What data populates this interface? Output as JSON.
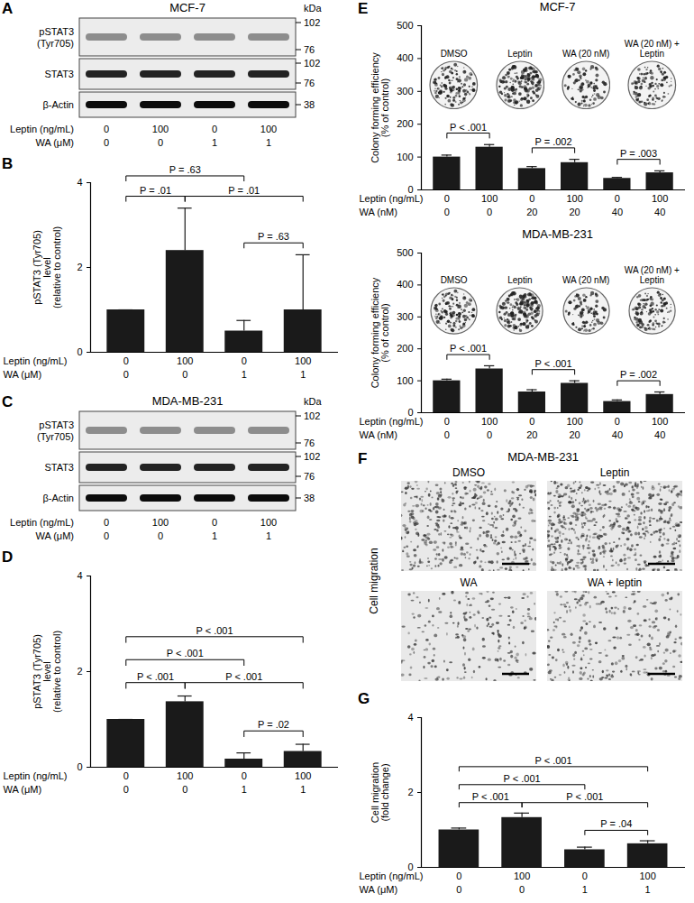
{
  "chart_data": [
    {
      "panel": "B",
      "type": "bar",
      "y_label": "pSTAT3 (Tyr705)\nlevel\n(relative to control)",
      "values": [
        1,
        2.4,
        0.5,
        1.0
      ],
      "errors": [
        0,
        1.0,
        0.25,
        1.3
      ],
      "color": "#1a1a1a",
      "ylim": [
        0,
        4
      ],
      "yticks": [
        0,
        2,
        4
      ],
      "conditions": [
        {
          "label": "Leptin (ng/mL)",
          "values": [
            0,
            100,
            0,
            100
          ]
        },
        {
          "label": "WA (μM)",
          "values": [
            0,
            0,
            1,
            1
          ]
        }
      ],
      "comparisons": [
        {
          "pair": [
            0,
            2
          ],
          "label": "P = .63"
        },
        {
          "pair": [
            0,
            1
          ],
          "label": "P = .01"
        },
        {
          "pair": [
            1,
            3
          ],
          "label": "P = .01"
        },
        {
          "pair": [
            2,
            3
          ],
          "label": "P = .63"
        }
      ]
    },
    {
      "panel": "D",
      "type": "bar",
      "y_label": "pSTAT3 (Tyr705)\nlevel\n(relative to control)",
      "values": [
        1,
        1.37,
        0.17,
        0.33
      ],
      "errors": [
        0,
        0.12,
        0.13,
        0.15
      ],
      "color": "#1a1a1a",
      "ylim": [
        0,
        4
      ],
      "yticks": [
        0,
        2,
        4
      ],
      "conditions": [
        {
          "label": "Leptin (ng/mL)",
          "values": [
            0,
            100,
            0,
            100
          ]
        },
        {
          "label": "WA (μM)",
          "values": [
            0,
            0,
            1,
            1
          ]
        }
      ],
      "comparisons": [
        {
          "pair": [
            0,
            3
          ],
          "label": "P < .001"
        },
        {
          "pair": [
            0,
            2
          ],
          "label": "P < .001"
        },
        {
          "pair": [
            0,
            1
          ],
          "label": "P < .001"
        },
        {
          "pair": [
            1,
            3
          ],
          "label": "P < .001"
        },
        {
          "pair": [
            2,
            3
          ],
          "label": "P = .02"
        }
      ]
    },
    {
      "panel": "E",
      "type": "bar",
      "title": "MCF-7",
      "y_label": "Colony forming efficiency\n(% of control)",
      "values": [
        100,
        130,
        65,
        83,
        35,
        52
      ],
      "errors": [
        6,
        8,
        6,
        10,
        3,
        6
      ],
      "color": "#1a1a1a",
      "ylim": [
        0,
        500
      ],
      "yticks": [
        0,
        100,
        200,
        300,
        400,
        500
      ],
      "image_labels": [
        "DMSO",
        "Leptin",
        "WA (20 nM)",
        "WA (20 nM) + Leptin"
      ],
      "conditions": [
        {
          "label": "Leptin (ng/mL)",
          "values": [
            0,
            100,
            0,
            100,
            0,
            100
          ]
        },
        {
          "label": "WA (nM)",
          "values": [
            0,
            0,
            20,
            20,
            40,
            40
          ]
        }
      ],
      "comparisons": [
        {
          "pair": [
            0,
            1
          ],
          "label": "P < .001"
        },
        {
          "pair": [
            2,
            3
          ],
          "label": "P = .002"
        },
        {
          "pair": [
            4,
            5
          ],
          "label": "P = .003"
        }
      ]
    },
    {
      "type": "bar",
      "title": "MDA-MB-231",
      "y_label": "Colony forming efficiency\n(% of control)",
      "values": [
        100,
        137,
        65,
        92,
        35,
        57
      ],
      "errors": [
        5,
        10,
        7,
        8,
        5,
        8
      ],
      "color": "#1a1a1a",
      "ylim": [
        0,
        500
      ],
      "yticks": [
        0,
        100,
        200,
        300,
        400,
        500
      ],
      "image_labels": [
        "DMSO",
        "Leptin",
        "WA (20 nM)",
        "WA (20 nM) + Leptin"
      ],
      "conditions": [
        {
          "label": "Leptin (ng/mL)",
          "values": [
            0,
            100,
            0,
            100,
            0,
            100
          ]
        },
        {
          "label": "WA (nM)",
          "values": [
            0,
            0,
            20,
            20,
            40,
            40
          ]
        }
      ],
      "comparisons": [
        {
          "pair": [
            0,
            1
          ],
          "label": "P < .001"
        },
        {
          "pair": [
            2,
            3
          ],
          "label": "P < .001"
        },
        {
          "pair": [
            4,
            5
          ],
          "label": "P = .002"
        }
      ]
    },
    {
      "panel": "G",
      "type": "bar",
      "y_label": "Cell migration\n(fold change)",
      "values": [
        1,
        1.33,
        0.47,
        0.63
      ],
      "errors": [
        0.05,
        0.12,
        0.07,
        0.08
      ],
      "color": "#1a1a1a",
      "ylim": [
        0,
        4
      ],
      "yticks": [
        0,
        2,
        4
      ],
      "conditions": [
        {
          "label": "Leptin (ng/mL)",
          "values": [
            0,
            100,
            0,
            100
          ]
        },
        {
          "label": "WA (μM)",
          "values": [
            0,
            0,
            1,
            1
          ]
        }
      ],
      "comparisons": [
        {
          "pair": [
            0,
            3
          ],
          "label": "P < .001"
        },
        {
          "pair": [
            0,
            2
          ],
          "label": "P < .001"
        },
        {
          "pair": [
            0,
            1
          ],
          "label": "P < .001"
        },
        {
          "pair": [
            1,
            3
          ],
          "label": "P < .001"
        },
        {
          "pair": [
            2,
            3
          ],
          "label": "P = .04"
        }
      ]
    }
  ],
  "blots": [
    {
      "panel": "A",
      "title": "MCF-7",
      "unit": "kDa",
      "rows": [
        {
          "label": "pSTAT3\n(Tyr705)",
          "markers": [
            102,
            76
          ]
        },
        {
          "label": "STAT3",
          "markers": [
            102,
            76
          ]
        },
        {
          "label": "β-Actin",
          "markers": [
            38
          ]
        }
      ],
      "conditions": [
        {
          "label": "Leptin (ng/mL)",
          "values": [
            0,
            100,
            0,
            100
          ]
        },
        {
          "label": "WA (μM)",
          "values": [
            0,
            0,
            1,
            1
          ]
        }
      ]
    },
    {
      "panel": "C",
      "title": "MDA-MB-231",
      "unit": "kDa",
      "rows": [
        {
          "label": "pSTAT3\n(Tyr705)",
          "markers": [
            102,
            76
          ]
        },
        {
          "label": "STAT3",
          "markers": [
            102,
            76
          ]
        },
        {
          "label": "β-Actin",
          "markers": [
            38
          ]
        }
      ],
      "conditions": [
        {
          "label": "Leptin (ng/mL)",
          "values": [
            0,
            100,
            0,
            100
          ]
        },
        {
          "label": "WA (μM)",
          "values": [
            0,
            0,
            1,
            1
          ]
        }
      ]
    }
  ],
  "migration_images": {
    "panel": "F",
    "title": "MDA-MB-231",
    "side_label": "Cell migration",
    "image_labels": [
      "DMSO",
      "Leptin",
      "WA",
      "WA + leptin"
    ]
  }
}
